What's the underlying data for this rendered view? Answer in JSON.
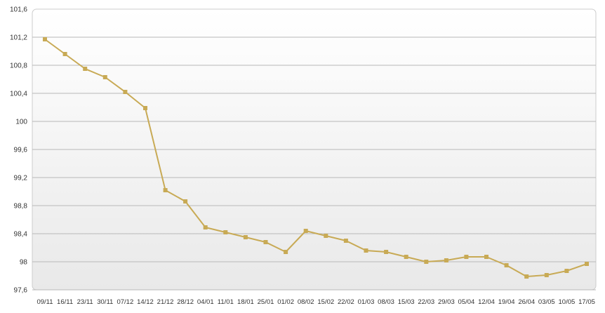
{
  "chart_data": {
    "type": "line",
    "title": "",
    "xlabel": "",
    "ylabel": "",
    "ylim": [
      97.6,
      101.6
    ],
    "yticks": [
      "101,6",
      "101,2",
      "100,8",
      "100,4",
      "100",
      "99,6",
      "99,2",
      "98,8",
      "98,4",
      "98",
      "97,6"
    ],
    "ytick_values": [
      101.6,
      101.2,
      100.8,
      100.4,
      100.0,
      99.6,
      99.2,
      98.8,
      98.4,
      98.0,
      97.6
    ],
    "grid": true,
    "categories": [
      "09/11",
      "16/11",
      "23/11",
      "30/11",
      "07/12",
      "14/12",
      "21/12",
      "28/12",
      "04/01",
      "11/01",
      "18/01",
      "25/01",
      "01/02",
      "08/02",
      "15/02",
      "22/02",
      "01/03",
      "08/03",
      "15/03",
      "22/03",
      "29/03",
      "05/04",
      "12/04",
      "19/04",
      "26/04",
      "03/05",
      "10/05",
      "17/05"
    ],
    "series": [
      {
        "values": [
          101.17,
          100.96,
          100.75,
          100.63,
          100.42,
          100.19,
          99.02,
          98.86,
          98.49,
          98.42,
          98.35,
          98.28,
          98.14,
          98.44,
          98.37,
          98.3,
          98.16,
          98.14,
          98.07,
          98.0,
          98.02,
          98.07,
          98.07,
          97.95,
          97.79,
          97.81,
          97.87,
          97.97
        ],
        "color": "#c8aa55"
      }
    ],
    "colors": {
      "grid": "#b8b8b8",
      "plot_bg_top": "#ffffff",
      "plot_bg_bottom": "#e9e9e9",
      "border": "#cccccc"
    }
  }
}
